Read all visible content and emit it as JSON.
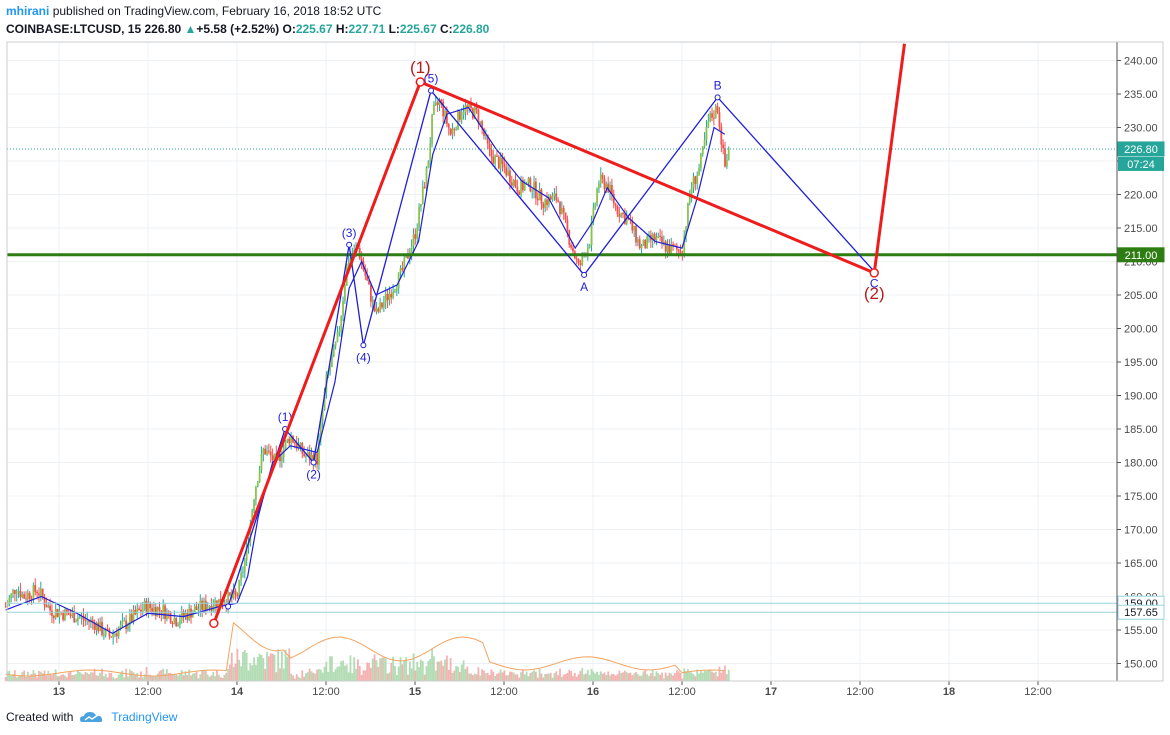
{
  "header": {
    "author": "mhirani",
    "published": "published on TradingView.com, February 16, 2018 18:52 UTC",
    "symbol": "COINBASE:LTCUSD, 15",
    "last": "226.80",
    "change": "+5.58 (+2.52%)",
    "open_label": "O:",
    "open": "225.67",
    "high_label": "H:",
    "high": "227.71",
    "low_label": "L:",
    "low": "225.67",
    "close_label": "C:",
    "close": "226.80"
  },
  "footer": {
    "created_with": "Created with",
    "brand": "TradingView"
  },
  "colors": {
    "up": "#26a69a",
    "up_fill": "#8bc34a",
    "down": "#ef5350",
    "blue": "#1f1fd6",
    "red": "#ee1c1c",
    "green": "#2e7d12",
    "grid": "#eef1f4"
  },
  "chart_data": {
    "type": "candlestick",
    "ylim": [
      148.5,
      242.5
    ],
    "y_ticks": [
      "240.00",
      "235.00",
      "230.00",
      "225.00",
      "220.00",
      "215.00",
      "210.00",
      "205.00",
      "200.00",
      "195.00",
      "190.00",
      "185.00",
      "180.00",
      "175.00",
      "170.00",
      "165.00",
      "160.00",
      "155.00",
      "150.00"
    ],
    "x_ticks": [
      {
        "label": "13",
        "t": 0
      },
      {
        "label": "12:00",
        "t": 0.5
      },
      {
        "label": "14",
        "t": 1
      },
      {
        "label": "12:00",
        "t": 1.5
      },
      {
        "label": "15",
        "t": 2
      },
      {
        "label": "12:00",
        "t": 2.5
      },
      {
        "label": "16",
        "t": 3
      },
      {
        "label": "12:00",
        "t": 3.5
      },
      {
        "label": "17",
        "t": 4
      },
      {
        "label": "12:00",
        "t": 4.5
      },
      {
        "label": "18",
        "t": 5
      },
      {
        "label": "12:00",
        "t": 5.5
      }
    ],
    "price_markers": [
      {
        "value": 226.8,
        "label": "226.80",
        "sub": "07:24",
        "color": "#26a69a"
      },
      {
        "value": 211.0,
        "label": "211.00",
        "color": "#2e7d12"
      },
      {
        "value": 159.0,
        "label": "159.00",
        "color": "#9ad3de"
      },
      {
        "value": 157.65,
        "label": "157.65",
        "color": "#9ad3de"
      }
    ],
    "close_path": [
      [
        -0.3,
        158.5
      ],
      [
        -0.24,
        161.5
      ],
      [
        -0.2,
        160.0
      ],
      [
        -0.12,
        161.0
      ],
      [
        -0.05,
        158.0
      ],
      [
        0.02,
        157.5
      ],
      [
        0.1,
        157.0
      ],
      [
        0.2,
        156.0
      ],
      [
        0.28,
        154.0
      ],
      [
        0.38,
        156.0
      ],
      [
        0.48,
        158.5
      ],
      [
        0.58,
        158.0
      ],
      [
        0.66,
        156.5
      ],
      [
        0.76,
        158.0
      ],
      [
        0.86,
        159.0
      ],
      [
        0.93,
        159.5
      ],
      [
        1.0,
        160.0
      ],
      [
        1.05,
        166.0
      ],
      [
        1.1,
        176.0
      ],
      [
        1.15,
        182.0
      ],
      [
        1.22,
        180.0
      ],
      [
        1.3,
        184.0
      ],
      [
        1.38,
        181.0
      ],
      [
        1.45,
        180.5
      ],
      [
        1.5,
        192.0
      ],
      [
        1.57,
        199.0
      ],
      [
        1.62,
        210.0
      ],
      [
        1.68,
        212.0
      ],
      [
        1.73,
        207.0
      ],
      [
        1.78,
        202.0
      ],
      [
        1.85,
        205.0
      ],
      [
        1.92,
        208.0
      ],
      [
        2.0,
        214.0
      ],
      [
        2.07,
        224.0
      ],
      [
        2.1,
        232.0
      ],
      [
        2.14,
        234.0
      ],
      [
        2.2,
        229.0
      ],
      [
        2.27,
        233.0
      ],
      [
        2.35,
        232.0
      ],
      [
        2.42,
        226.0
      ],
      [
        2.5,
        224.0
      ],
      [
        2.58,
        221.0
      ],
      [
        2.65,
        221.5
      ],
      [
        2.72,
        219.0
      ],
      [
        2.8,
        219.5
      ],
      [
        2.86,
        214.0
      ],
      [
        2.92,
        209.0
      ],
      [
        2.98,
        213.0
      ],
      [
        3.03,
        222.0
      ],
      [
        3.08,
        221.5
      ],
      [
        3.13,
        218.0
      ],
      [
        3.2,
        216.0
      ],
      [
        3.27,
        212.0
      ],
      [
        3.34,
        213.5
      ],
      [
        3.42,
        212.0
      ],
      [
        3.5,
        211.5
      ],
      [
        3.55,
        221.0
      ],
      [
        3.6,
        224.0
      ],
      [
        3.65,
        231.0
      ],
      [
        3.7,
        233.0
      ],
      [
        3.74,
        224.0
      ],
      [
        3.77,
        226.8
      ]
    ],
    "ma_path": [
      [
        -0.3,
        158.0
      ],
      [
        -0.1,
        160.0
      ],
      [
        0.1,
        157.5
      ],
      [
        0.3,
        154.5
      ],
      [
        0.5,
        157.5
      ],
      [
        0.7,
        157.0
      ],
      [
        0.9,
        158.5
      ],
      [
        1.0,
        159.0
      ],
      [
        1.06,
        163.0
      ],
      [
        1.12,
        172.0
      ],
      [
        1.2,
        180.0
      ],
      [
        1.3,
        182.5
      ],
      [
        1.45,
        181.5
      ],
      [
        1.55,
        192.0
      ],
      [
        1.63,
        206.0
      ],
      [
        1.7,
        210.0
      ],
      [
        1.78,
        205.0
      ],
      [
        1.9,
        206.5
      ],
      [
        2.02,
        213.0
      ],
      [
        2.1,
        226.0
      ],
      [
        2.18,
        232.0
      ],
      [
        2.3,
        233.0
      ],
      [
        2.45,
        227.0
      ],
      [
        2.6,
        222.0
      ],
      [
        2.75,
        219.5
      ],
      [
        2.9,
        212.0
      ],
      [
        3.0,
        216.0
      ],
      [
        3.08,
        221.0
      ],
      [
        3.2,
        216.5
      ],
      [
        3.35,
        213.0
      ],
      [
        3.5,
        212.0
      ],
      [
        3.58,
        219.0
      ],
      [
        3.68,
        230.0
      ],
      [
        3.74,
        229.0
      ]
    ],
    "blue_wave": [
      {
        "t": 0.95,
        "v": 158.5,
        "label": ""
      },
      {
        "t": 1.27,
        "v": 185.0,
        "label": "(1)"
      },
      {
        "t": 1.43,
        "v": 180.0,
        "label": "(2)"
      },
      {
        "t": 1.63,
        "v": 212.5,
        "label": "(3)"
      },
      {
        "t": 1.71,
        "v": 197.5,
        "label": "(4)"
      },
      {
        "t": 2.09,
        "v": 235.5,
        "label": "(5)"
      },
      {
        "t": 2.95,
        "v": 208.0,
        "label": "A"
      },
      {
        "t": 3.7,
        "v": 234.5,
        "label": "B"
      },
      {
        "t": 4.58,
        "v": 208.5,
        "label": "C"
      }
    ],
    "red_wave": [
      {
        "t": 0.87,
        "v": 156.0,
        "label": ""
      },
      {
        "t": 2.03,
        "v": 236.8,
        "label": "(1)"
      },
      {
        "t": 4.58,
        "v": 208.3,
        "label": "(2)"
      },
      {
        "t": 4.75,
        "v": 242.5,
        "label": ""
      }
    ],
    "support_level": 211.0
  }
}
